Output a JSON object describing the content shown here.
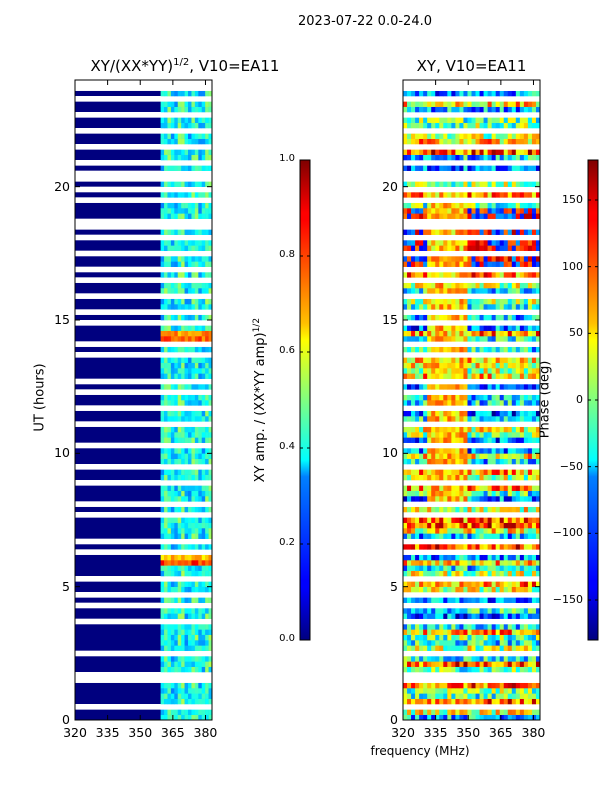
{
  "suptitle": "2023-07-22 0.0-24.0",
  "chart_data": [
    {
      "type": "heatmap",
      "title": "XY/(XX*YY)^{1/2}, V10=EA11",
      "title_main": "XY/(XX*YY)",
      "title_sup": "1/2",
      "title_tail": ", V10=EA11",
      "xlim": [
        320,
        383
      ],
      "ylim": [
        0,
        24
      ],
      "xticks": [
        "320",
        "335",
        "350",
        "365",
        "380"
      ],
      "xtick_values": [
        320,
        335,
        350,
        365,
        380
      ],
      "yticks": [
        "0",
        "5",
        "10",
        "15",
        "20"
      ],
      "ytick_values": [
        0,
        5,
        10,
        15,
        20
      ],
      "ylabel": "UT (hours)",
      "colorbar": {
        "label": "XY amp. / (XX*YY amp)^{1/2}",
        "label_main": "XY amp. / (XX*YY amp)",
        "label_sup": "1/2",
        "range": [
          0.0,
          1.0
        ],
        "ticks": [
          "0.0",
          "0.2",
          "0.4",
          "0.6",
          "0.8",
          "1.0"
        ],
        "tick_values": [
          0.0,
          0.2,
          0.4,
          0.6,
          0.8,
          1.0
        ],
        "colormap": "jet"
      },
      "description_value": "background amplitude ~0.1 below 360 MHz; elevated 0.3-0.6 in 360-383 MHz band; peaks ~0.8-0.9 near 14.3 h and 5.8 h"
    },
    {
      "type": "heatmap",
      "title": "XY, V10=EA11",
      "xlim": [
        320,
        383
      ],
      "ylim": [
        0,
        24
      ],
      "xticks": [
        "320",
        "335",
        "350",
        "365",
        "380"
      ],
      "xtick_values": [
        320,
        335,
        350,
        365,
        380
      ],
      "yticks": [
        "0",
        "5",
        "10",
        "15",
        "20"
      ],
      "ytick_values": [
        0,
        5,
        10,
        15,
        20
      ],
      "xlabel": "frequency (MHz)",
      "colorbar": {
        "label": "Phase (deg)",
        "range": [
          -180,
          180
        ],
        "ticks": [
          "−150",
          "−100",
          "−50",
          "0",
          "50",
          "100",
          "150"
        ],
        "tick_values": [
          -150,
          -100,
          -50,
          0,
          50,
          100,
          150
        ],
        "colormap": "jet"
      }
    }
  ],
  "colors": {
    "jet_low": "#00007f",
    "jet_high": "#7f0000"
  }
}
